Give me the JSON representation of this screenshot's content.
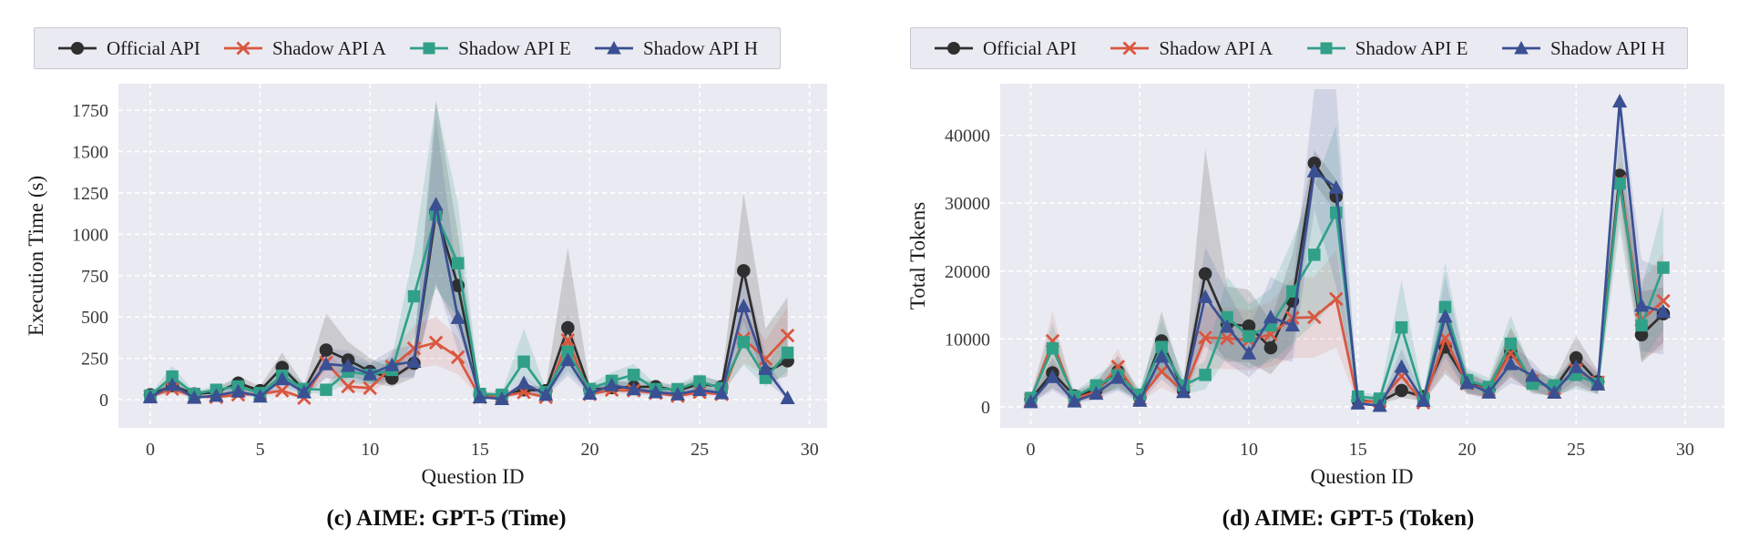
{
  "figure": {
    "background": "#ffffff",
    "plot_background": "#eaeaf2",
    "grid_color": "#ffffff"
  },
  "legend": {
    "items": [
      {
        "label": "Official API",
        "series": "official"
      },
      {
        "label": "Shadow API A",
        "series": "shadow_a"
      },
      {
        "label": "Shadow API E",
        "series": "shadow_e"
      },
      {
        "label": "Shadow API H",
        "series": "shadow_h"
      }
    ]
  },
  "chart_data": [
    {
      "type": "line",
      "id": "time",
      "caption": "(c) AIME: GPT-5 (Time)",
      "xlabel": "Question ID",
      "ylabel": "Execution Time (s)",
      "xticks": [
        0,
        5,
        10,
        15,
        20,
        25,
        30
      ],
      "yticks": [
        0,
        250,
        500,
        750,
        1000,
        1250,
        1500,
        1750
      ],
      "xlim": [
        -1.45,
        30.8
      ],
      "ylim": [
        -170,
        1910
      ],
      "grid": true,
      "x": [
        0,
        1,
        2,
        3,
        4,
        5,
        6,
        7,
        8,
        9,
        10,
        11,
        12,
        13,
        14,
        15,
        16,
        17,
        18,
        19,
        20,
        21,
        22,
        23,
        24,
        25,
        26,
        27,
        28,
        29
      ],
      "series": [
        {
          "name": "Official API",
          "marker": "circle",
          "color": "#2f2f2f",
          "band_color": "#777777",
          "band_opacity": 0.28,
          "values": [
            30,
            85,
            35,
            45,
            100,
            55,
            195,
            60,
            300,
            240,
            170,
            130,
            220,
            1130,
            690,
            30,
            25,
            60,
            55,
            435,
            60,
            73,
            77,
            79,
            55,
            95,
            79,
            780,
            165,
            235
          ],
          "band_upper": [
            45,
            125,
            50,
            65,
            145,
            80,
            285,
            90,
            520,
            350,
            250,
            190,
            320,
            1810,
            1000,
            45,
            38,
            90,
            80,
            920,
            90,
            108,
            112,
            115,
            80,
            140,
            115,
            1250,
            430,
            620
          ],
          "band_lower": [
            18,
            52,
            21,
            27,
            61,
            33,
            118,
            36,
            182,
            146,
            103,
            79,
            133,
            690,
            420,
            18,
            15,
            36,
            33,
            265,
            36,
            44,
            47,
            48,
            33,
            58,
            48,
            475,
            100,
            143
          ]
        },
        {
          "name": "Shadow API A",
          "marker": "x",
          "color": "#d9573f",
          "band_color": "#d9573f",
          "band_opacity": 0.13,
          "values": [
            20,
            65,
            20,
            15,
            30,
            35,
            55,
            10,
            225,
            80,
            70,
            200,
            310,
            345,
            257,
            15,
            20,
            45,
            15,
            360,
            33,
            59,
            55,
            40,
            22,
            45,
            33,
            370,
            247,
            388
          ],
          "band_upper": [
            30,
            95,
            30,
            23,
            45,
            52,
            80,
            15,
            330,
            120,
            105,
            290,
            450,
            500,
            380,
            23,
            30,
            66,
            23,
            520,
            48,
            86,
            80,
            58,
            32,
            66,
            48,
            540,
            360,
            560
          ],
          "band_lower": [
            12,
            39,
            12,
            9,
            18,
            21,
            33,
            6,
            136,
            48,
            42,
            121,
            187,
            209,
            155,
            9,
            12,
            27,
            9,
            218,
            20,
            36,
            33,
            24,
            13,
            27,
            20,
            224,
            149,
            235
          ]
        },
        {
          "name": "Shadow API E",
          "marker": "square",
          "color": "#31a089",
          "band_color": "#31a089",
          "band_opacity": 0.18,
          "values": [
            25,
            140,
            35,
            60,
            80,
            40,
            145,
            65,
            60,
            170,
            150,
            180,
            625,
            1120,
            825,
            35,
            30,
            230,
            45,
            290,
            65,
            114,
            150,
            64,
            64,
            110,
            70,
            348,
            132,
            284
          ],
          "band_upper": [
            36,
            205,
            50,
            87,
            116,
            58,
            210,
            94,
            87,
            246,
            216,
            260,
            905,
            1800,
            1190,
            50,
            44,
            430,
            65,
            420,
            94,
            165,
            216,
            93,
            93,
            159,
            101,
            505,
            191,
            410
          ],
          "band_lower": [
            15,
            85,
            21,
            36,
            48,
            24,
            87,
            39,
            36,
            102,
            90,
            108,
            376,
            672,
            495,
            21,
            18,
            138,
            27,
            174,
            39,
            68,
            90,
            38,
            38,
            66,
            42,
            209,
            79,
            170
          ]
        },
        {
          "name": "Shadow API H",
          "marker": "triangle",
          "color": "#3b5093",
          "band_color": "#3b5093",
          "band_opacity": 0.15,
          "values": [
            15,
            90,
            12,
            25,
            50,
            20,
            125,
            45,
            215,
            205,
            155,
            210,
            230,
            1180,
            495,
            15,
            5,
            100,
            30,
            240,
            37,
            88,
            64,
            46,
            33,
            59,
            40,
            565,
            187,
            10
          ],
          "band_upper": [
            22,
            130,
            18,
            36,
            72,
            29,
            180,
            65,
            310,
            295,
            224,
            303,
            331,
            1700,
            715,
            22,
            8,
            144,
            43,
            346,
            53,
            127,
            92,
            66,
            48,
            85,
            58,
            815,
            270,
            15
          ],
          "band_lower": [
            9,
            54,
            7,
            15,
            30,
            12,
            75,
            27,
            130,
            123,
            93,
            127,
            138,
            712,
            296,
            9,
            3,
            60,
            18,
            144,
            22,
            53,
            38,
            28,
            20,
            36,
            24,
            340,
            112,
            4
          ]
        }
      ]
    },
    {
      "type": "line",
      "id": "token",
      "caption": "(d) AIME: GPT-5 (Token)",
      "xlabel": "Question ID",
      "ylabel": "Total Tokens",
      "xticks": [
        0,
        5,
        10,
        15,
        20,
        25,
        30
      ],
      "yticks": [
        0,
        10000,
        20000,
        30000,
        40000
      ],
      "xlim": [
        -1.4,
        31.8
      ],
      "ylim": [
        -3100,
        47600
      ],
      "grid": true,
      "x": [
        0,
        1,
        2,
        3,
        4,
        5,
        6,
        7,
        8,
        9,
        10,
        11,
        12,
        13,
        14,
        15,
        16,
        17,
        18,
        19,
        20,
        21,
        22,
        23,
        24,
        25,
        26,
        27,
        28,
        29
      ],
      "series": [
        {
          "name": "Official API",
          "marker": "circle",
          "color": "#2f2f2f",
          "band_color": "#777777",
          "band_opacity": 0.28,
          "values": [
            1100,
            5000,
            1600,
            2500,
            5200,
            1350,
            9700,
            2400,
            19600,
            12200,
            11900,
            8700,
            15600,
            35900,
            31000,
            900,
            700,
            2400,
            1500,
            8800,
            3600,
            2500,
            8100,
            3900,
            2700,
            7200,
            3700,
            34100,
            10600,
            13700
          ],
          "band_upper": [
            1600,
            7250,
            2320,
            3630,
            7540,
            1960,
            14070,
            3480,
            38000,
            17700,
            17260,
            12620,
            22620,
            37800,
            33500,
            1310,
            1020,
            3480,
            2180,
            12760,
            5220,
            3630,
            11750,
            5660,
            3920,
            10440,
            5370,
            36200,
            17000,
            17600
          ],
          "band_lower": [
            605,
            2750,
            880,
            1380,
            2860,
            745,
            5340,
            1320,
            10780,
            6710,
            6550,
            4790,
            8580,
            33000,
            28500,
            495,
            385,
            1320,
            825,
            4840,
            1980,
            1375,
            4460,
            2145,
            1485,
            3960,
            2035,
            31000,
            6500,
            9450
          ]
        },
        {
          "name": "Shadow API A",
          "marker": "x",
          "color": "#d9573f",
          "band_color": "#d9573f",
          "band_opacity": 0.13,
          "values": [
            1000,
            9700,
            1100,
            2250,
            5900,
            1200,
            5200,
            2250,
            10200,
            10100,
            9800,
            10700,
            13100,
            13200,
            15900,
            700,
            800,
            4500,
            600,
            10100,
            3400,
            2480,
            7900,
            3800,
            2700,
            5400,
            3600,
            33200,
            12800,
            15600
          ],
          "band_upper": [
            1450,
            14070,
            1600,
            3270,
            8560,
            1740,
            7540,
            3270,
            14800,
            14650,
            14210,
            15520,
            19000,
            19140,
            23060,
            1020,
            1160,
            6530,
            870,
            14650,
            4930,
            3600,
            11460,
            5510,
            3920,
            7830,
            5220,
            38000,
            18560,
            22620
          ],
          "band_lower": [
            550,
            5335,
            605,
            1240,
            3245,
            660,
            2860,
            1240,
            5610,
            5555,
            5390,
            5885,
            7205,
            7260,
            8745,
            385,
            440,
            2475,
            330,
            5555,
            1870,
            1364,
            4345,
            2090,
            1485,
            2970,
            1980,
            28000,
            7040,
            8580
          ]
        },
        {
          "name": "Shadow API E",
          "marker": "square",
          "color": "#31a089",
          "band_color": "#31a089",
          "band_opacity": 0.18,
          "values": [
            1300,
            8600,
            1500,
            3150,
            4650,
            1800,
            8800,
            3150,
            4700,
            13200,
            10400,
            12000,
            17000,
            22400,
            28600,
            1500,
            1200,
            11700,
            1100,
            14700,
            3900,
            2930,
            9300,
            3400,
            3150,
            4700,
            3400,
            32900,
            12000,
            20500
          ],
          "band_upper": [
            1890,
            12470,
            2180,
            4570,
            6740,
            2610,
            12760,
            4570,
            6820,
            19140,
            15080,
            17400,
            24650,
            32480,
            41470,
            2180,
            1740,
            18720,
            1600,
            21320,
            5660,
            4250,
            13490,
            4930,
            4570,
            6820,
            4930,
            39000,
            17400,
            29730
          ],
          "band_lower": [
            715,
            4730,
            825,
            1730,
            2560,
            990,
            4840,
            1730,
            2585,
            7260,
            5720,
            6600,
            9350,
            12320,
            15730,
            825,
            660,
            6435,
            605,
            8085,
            2145,
            1612,
            5115,
            1870,
            1730,
            2585,
            1870,
            26300,
            6600,
            11275
          ]
        },
        {
          "name": "Shadow API H",
          "marker": "triangle",
          "color": "#3b5093",
          "band_color": "#3b5093",
          "band_opacity": 0.15,
          "values": [
            700,
            4400,
            800,
            1950,
            4300,
            900,
            7400,
            2200,
            16200,
            11800,
            7880,
            13200,
            12000,
            34700,
            32300,
            500,
            150,
            5900,
            900,
            13300,
            3500,
            2120,
            6300,
            4600,
            2100,
            5850,
            3300,
            45000,
            14900,
            14000
          ],
          "band_upper": [
            1020,
            6380,
            1160,
            2830,
            6240,
            1310,
            10730,
            3190,
            23490,
            17110,
            11430,
            19140,
            17400,
            46800,
            46800,
            725,
            220,
            8560,
            1310,
            19290,
            5080,
            3070,
            9140,
            6670,
            3050,
            8480,
            4790,
            46600,
            21610,
            20300
          ],
          "band_lower": [
            385,
            2420,
            440,
            1073,
            2365,
            495,
            4070,
            1210,
            8910,
            6490,
            4334,
            7260,
            6600,
            29000,
            17765,
            275,
            83,
            3245,
            495,
            7315,
            1925,
            1166,
            3465,
            2530,
            1155,
            3218,
            1815,
            38200,
            8195,
            7700
          ]
        }
      ]
    }
  ]
}
